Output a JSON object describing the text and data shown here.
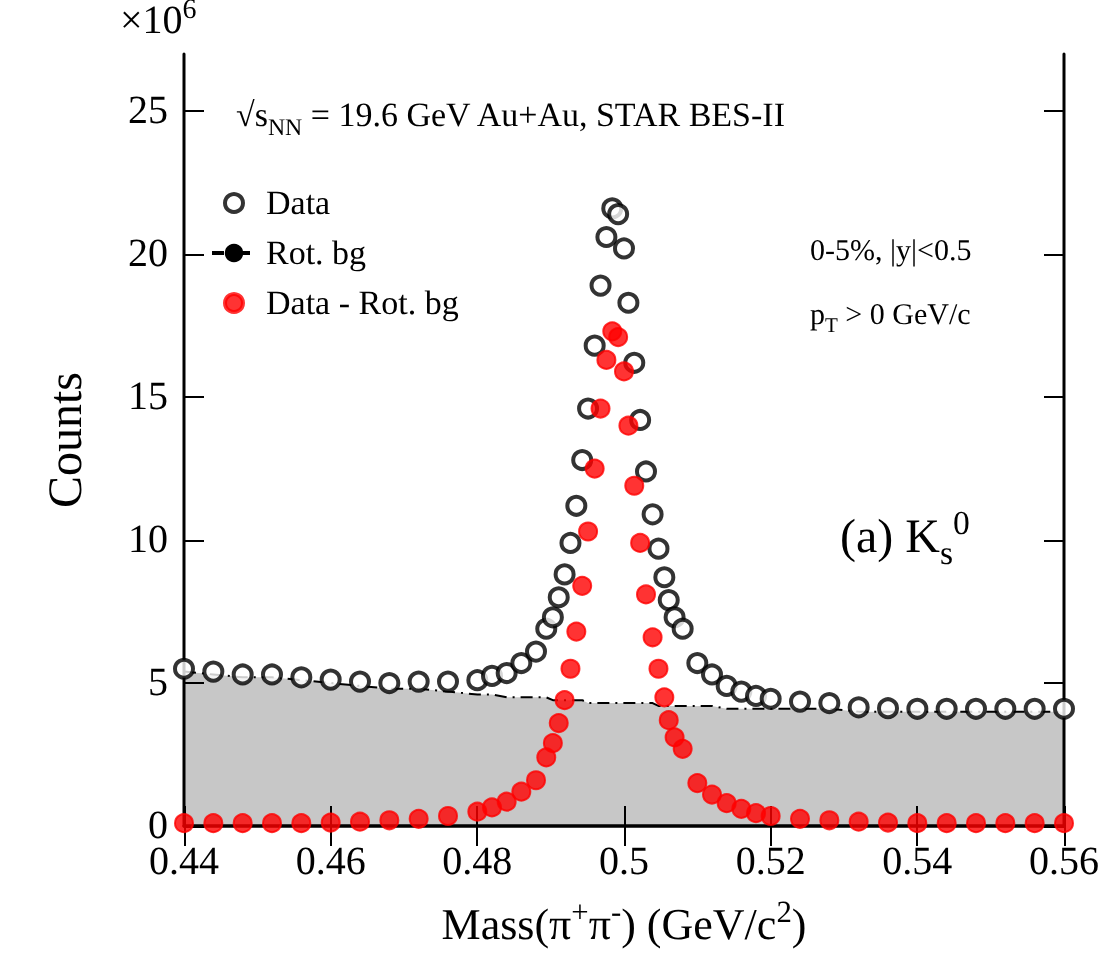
{
  "chart_data": {
    "type": "scatter",
    "xlabel": "Mass(π$^{+}$π$^{-}$) (GeV/c$^{2}$)",
    "ylabel": "Counts",
    "annotations": [
      "×10$^{6}$",
      "√s$_{NN}$ = 19.6 GeV Au+Au, STAR BES-II",
      "0-5%, |y|<0.5",
      "p$_{T}$ > 0 GeV/c",
      "(a) K$_{s}$$^{0}$"
    ],
    "x": [
      0.44,
      0.444,
      0.448,
      0.452,
      0.456,
      0.46,
      0.464,
      0.468,
      0.472,
      0.476,
      0.48,
      0.482,
      0.484,
      0.486,
      0.488,
      0.4894,
      0.4903,
      0.4911,
      0.4919,
      0.4927,
      0.4935,
      0.4943,
      0.4951,
      0.496,
      0.4968,
      0.4976,
      0.4984,
      0.4992,
      0.5,
      0.5006,
      0.5014,
      0.5022,
      0.503,
      0.5039,
      0.5047,
      0.5055,
      0.5061,
      0.5069,
      0.508,
      0.51,
      0.512,
      0.514,
      0.516,
      0.518,
      0.52,
      0.524,
      0.528,
      0.532,
      0.536,
      0.54,
      0.544,
      0.548,
      0.552,
      0.556,
      0.56
    ],
    "series": [
      {
        "name": "Data",
        "color": "#000000",
        "marker": "circle",
        "values": [
          5.5,
          5.4,
          5.3,
          5.3,
          5.2,
          5.12,
          5.05,
          5.0,
          5.05,
          5.05,
          5.1,
          5.25,
          5.35,
          5.7,
          6.1,
          6.9,
          7.3,
          8.0,
          8.8,
          9.9,
          11.2,
          12.8,
          14.6,
          16.8,
          18.9,
          20.6,
          21.6,
          21.4,
          20.2,
          18.3,
          16.2,
          14.2,
          12.4,
          10.9,
          9.7,
          8.7,
          7.9,
          7.3,
          6.9,
          5.7,
          5.3,
          4.9,
          4.7,
          4.55,
          4.45,
          4.35,
          4.3,
          4.15,
          4.12,
          4.1,
          4.1,
          4.1,
          4.1,
          4.1,
          4.1
        ]
      },
      {
        "name": "Rot. bg",
        "type": "area",
        "color": "#000000",
        "marker": "none",
        "line_style": "dashed",
        "values": [
          5.4,
          5.3,
          5.2,
          5.2,
          5.1,
          5.0,
          4.9,
          4.8,
          4.8,
          4.7,
          4.6,
          4.6,
          4.5,
          4.5,
          4.5,
          4.5,
          4.4,
          4.4,
          4.4,
          4.4,
          4.4,
          4.4,
          4.3,
          4.3,
          4.3,
          4.3,
          4.3,
          4.3,
          4.3,
          4.3,
          4.3,
          4.3,
          4.3,
          4.3,
          4.2,
          4.2,
          4.2,
          4.2,
          4.2,
          4.2,
          4.2,
          4.1,
          4.1,
          4.1,
          4.1,
          4.1,
          4.1,
          4.0,
          4.0,
          4.0,
          4.0,
          4.0,
          4.0,
          4.0,
          4.0
        ]
      },
      {
        "name": "Data - Rot. bg",
        "color": "#ff0000",
        "marker": "circle",
        "values": [
          0.1,
          0.1,
          0.1,
          0.1,
          0.1,
          0.12,
          0.15,
          0.2,
          0.25,
          0.35,
          0.5,
          0.65,
          0.85,
          1.2,
          1.6,
          2.4,
          2.9,
          3.6,
          4.4,
          5.5,
          6.8,
          8.4,
          10.3,
          12.5,
          14.6,
          16.3,
          17.3,
          17.1,
          15.9,
          14.0,
          11.9,
          9.9,
          8.1,
          6.6,
          5.5,
          4.5,
          3.7,
          3.1,
          2.7,
          1.5,
          1.1,
          0.8,
          0.6,
          0.45,
          0.35,
          0.25,
          0.2,
          0.15,
          0.12,
          0.1,
          0.1,
          0.1,
          0.1,
          0.1,
          0.1
        ]
      }
    ],
    "xlim": [
      0.44,
      0.56
    ],
    "xticks": [
      0.44,
      0.46,
      0.48,
      0.5,
      0.52,
      0.54,
      0.56
    ],
    "ylim": [
      0,
      27
    ],
    "yticks": [
      0,
      5,
      10,
      15,
      20,
      25
    ],
    "grid": false,
    "legend": "top left"
  }
}
